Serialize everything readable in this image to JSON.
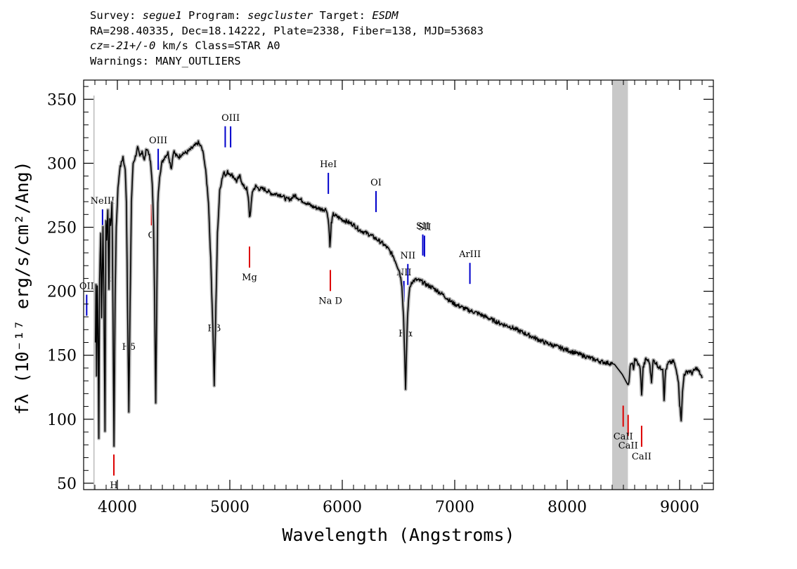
{
  "header": {
    "line1": {
      "k1": "Survey: ",
      "survey": "segue1",
      "k2": " Program: ",
      "program": "segcluster",
      "k3": " Target: ",
      "target": "ESDM"
    },
    "line2": "RA=298.40335, Dec=18.14222, Plate=2338, Fiber=138, MJD=53683",
    "line3": {
      "cz": "cz=-21+/-0",
      "rest": " km/s Class=STAR A0"
    },
    "line4": "Warnings: MANY_OUTLIERS"
  },
  "chart_data": {
    "type": "line",
    "title": "",
    "xlabel": "Wavelength (Angstroms)",
    "ylabel": "fλ (10⁻¹⁷ erg/s/cm²/Ang)",
    "xlim": [
      3700,
      9300
    ],
    "ylim": [
      45,
      365
    ],
    "x_ticks": [
      4000,
      5000,
      6000,
      7000,
      8000,
      9000
    ],
    "y_ticks": [
      50,
      100,
      150,
      200,
      250,
      300,
      350
    ],
    "grid": false,
    "masked_region": [
      8400,
      8540
    ],
    "colors": {
      "spectrum": "#000000",
      "error_band": "#b4b4b4",
      "emission": "#0000cc",
      "absorption": "#dd0000",
      "mask": "#c8c8c8",
      "bad_start": "#9a9a9a"
    },
    "spectrum": [
      [
        3805,
        160
      ],
      [
        3810,
        205
      ],
      [
        3815,
        135
      ],
      [
        3822,
        205
      ],
      [
        3828,
        170
      ],
      [
        3835,
        85
      ],
      [
        3842,
        210
      ],
      [
        3852,
        245
      ],
      [
        3860,
        180
      ],
      [
        3872,
        250
      ],
      [
        3880,
        195
      ],
      [
        3890,
        90
      ],
      [
        3898,
        255
      ],
      [
        3905,
        240
      ],
      [
        3915,
        265
      ],
      [
        3925,
        200
      ],
      [
        3932,
        258
      ],
      [
        3940,
        250
      ],
      [
        3952,
        270
      ],
      [
        3960,
        195
      ],
      [
        3970,
        80
      ],
      [
        3980,
        195
      ],
      [
        3990,
        250
      ],
      [
        4005,
        280
      ],
      [
        4020,
        295
      ],
      [
        4035,
        300
      ],
      [
        4050,
        305
      ],
      [
        4060,
        298
      ],
      [
        4070,
        296
      ],
      [
        4080,
        270
      ],
      [
        4092,
        180
      ],
      [
        4102,
        105
      ],
      [
        4112,
        180
      ],
      [
        4125,
        270
      ],
      [
        4140,
        300
      ],
      [
        4160,
        305
      ],
      [
        4180,
        312
      ],
      [
        4200,
        305
      ],
      [
        4220,
        310
      ],
      [
        4240,
        302
      ],
      [
        4260,
        312
      ],
      [
        4280,
        308
      ],
      [
        4295,
        300
      ],
      [
        4310,
        285
      ],
      [
        4322,
        250
      ],
      [
        4332,
        190
      ],
      [
        4341,
        112
      ],
      [
        4350,
        190
      ],
      [
        4360,
        270
      ],
      [
        4375,
        290
      ],
      [
        4395,
        300
      ],
      [
        4420,
        305
      ],
      [
        4450,
        308
      ],
      [
        4480,
        296
      ],
      [
        4500,
        310
      ],
      [
        4520,
        306
      ],
      [
        4550,
        305
      ],
      [
        4580,
        308
      ],
      [
        4610,
        308
      ],
      [
        4640,
        310
      ],
      [
        4680,
        313
      ],
      [
        4720,
        316
      ],
      [
        4750,
        312
      ],
      [
        4770,
        305
      ],
      [
        4790,
        290
      ],
      [
        4810,
        270
      ],
      [
        4830,
        225
      ],
      [
        4850,
        170
      ],
      [
        4861,
        127
      ],
      [
        4872,
        170
      ],
      [
        4890,
        245
      ],
      [
        4910,
        278
      ],
      [
        4930,
        288
      ],
      [
        4950,
        294
      ],
      [
        4965,
        290
      ],
      [
        4980,
        293
      ],
      [
        5000,
        292
      ],
      [
        5030,
        290
      ],
      [
        5060,
        286
      ],
      [
        5090,
        290
      ],
      [
        5120,
        282
      ],
      [
        5150,
        280
      ],
      [
        5168,
        270
      ],
      [
        5175,
        258
      ],
      [
        5185,
        262
      ],
      [
        5200,
        278
      ],
      [
        5230,
        282
      ],
      [
        5260,
        280
      ],
      [
        5300,
        280
      ],
      [
        5340,
        278
      ],
      [
        5380,
        276
      ],
      [
        5420,
        276
      ],
      [
        5460,
        275
      ],
      [
        5500,
        272
      ],
      [
        5540,
        272
      ],
      [
        5580,
        275
      ],
      [
        5620,
        272
      ],
      [
        5660,
        270
      ],
      [
        5700,
        268
      ],
      [
        5740,
        266
      ],
      [
        5780,
        265
      ],
      [
        5820,
        264
      ],
      [
        5860,
        264
      ],
      [
        5880,
        253
      ],
      [
        5890,
        235
      ],
      [
        5896,
        242
      ],
      [
        5902,
        253
      ],
      [
        5920,
        260
      ],
      [
        5960,
        258
      ],
      [
        6000,
        256
      ],
      [
        6050,
        254
      ],
      [
        6100,
        252
      ],
      [
        6150,
        248
      ],
      [
        6200,
        246
      ],
      [
        6250,
        244
      ],
      [
        6300,
        241
      ],
      [
        6350,
        238
      ],
      [
        6400,
        234
      ],
      [
        6450,
        228
      ],
      [
        6480,
        222
      ],
      [
        6510,
        215
      ],
      [
        6530,
        205
      ],
      [
        6545,
        180
      ],
      [
        6558,
        140
      ],
      [
        6563,
        123
      ],
      [
        6568,
        140
      ],
      [
        6580,
        180
      ],
      [
        6595,
        200
      ],
      [
        6615,
        207
      ],
      [
        6650,
        209
      ],
      [
        6700,
        208
      ],
      [
        6750,
        205
      ],
      [
        6800,
        203
      ],
      [
        6850,
        200
      ],
      [
        6900,
        197
      ],
      [
        6950,
        193
      ],
      [
        7000,
        190
      ],
      [
        7100,
        186
      ],
      [
        7130,
        185
      ],
      [
        7200,
        183
      ],
      [
        7300,
        179
      ],
      [
        7400,
        175
      ],
      [
        7500,
        172
      ],
      [
        7600,
        168
      ],
      [
        7700,
        164
      ],
      [
        7800,
        160
      ],
      [
        7900,
        157
      ],
      [
        8000,
        154
      ],
      [
        8100,
        151
      ],
      [
        8200,
        148
      ],
      [
        8300,
        145
      ],
      [
        8360,
        144
      ],
      [
        8420,
        143
      ],
      [
        8490,
        135
      ],
      [
        8545,
        126
      ],
      [
        8560,
        140
      ],
      [
        8575,
        145
      ],
      [
        8590,
        138
      ],
      [
        8600,
        148
      ],
      [
        8625,
        144
      ],
      [
        8650,
        140
      ],
      [
        8662,
        118
      ],
      [
        8675,
        140
      ],
      [
        8700,
        147
      ],
      [
        8730,
        145
      ],
      [
        8750,
        130
      ],
      [
        8765,
        146
      ],
      [
        8790,
        144
      ],
      [
        8820,
        140
      ],
      [
        8850,
        140
      ],
      [
        8862,
        116
      ],
      [
        8875,
        138
      ],
      [
        8900,
        144
      ],
      [
        8950,
        145
      ],
      [
        8990,
        130
      ],
      [
        9000,
        112
      ],
      [
        9014,
        100
      ],
      [
        9025,
        120
      ],
      [
        9040,
        135
      ],
      [
        9080,
        138
      ],
      [
        9110,
        136
      ],
      [
        9150,
        140
      ],
      [
        9180,
        136
      ],
      [
        9200,
        132
      ]
    ],
    "emission_lines": [
      {
        "name": "OII",
        "wave": 3727
      },
      {
        "name": "NeIII",
        "wave": 3868
      },
      {
        "name": "Hδ",
        "wave": 4101
      },
      {
        "name": "OIII",
        "wave": 4363
      },
      {
        "name": "Hβ",
        "wave": 4861
      },
      {
        "name": "OIII",
        "wave": 4959,
        "nolabel": true
      },
      {
        "name": "OIII",
        "wave": 5007
      },
      {
        "name": "HeI",
        "wave": 5876
      },
      {
        "name": "OI",
        "wave": 6300
      },
      {
        "name": "NII",
        "wave": 6548
      },
      {
        "name": "Hα",
        "wave": 6563
      },
      {
        "name": "NII",
        "wave": 6583
      },
      {
        "name": "SII",
        "wave": 6716
      },
      {
        "name": "SII",
        "wave": 6731
      },
      {
        "name": "ArIII",
        "wave": 7135
      }
    ],
    "absorption_lines": [
      {
        "name": "K",
        "wave": 3934
      },
      {
        "name": "H",
        "wave": 3969
      },
      {
        "name": "G",
        "wave": 4304
      },
      {
        "name": "Mg",
        "wave": 5175
      },
      {
        "name": "Na D",
        "wave": 5894
      },
      {
        "name": "CaII",
        "wave": 8498
      },
      {
        "name": "CaII",
        "wave": 8542
      },
      {
        "name": "CaII",
        "wave": 8662
      }
    ]
  }
}
